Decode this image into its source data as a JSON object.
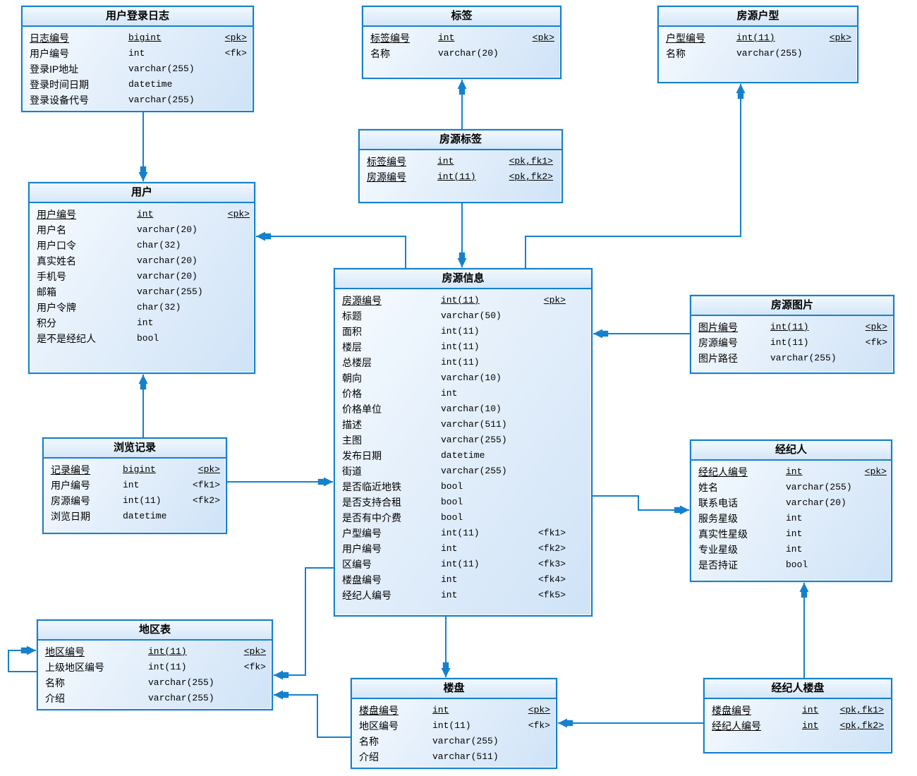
{
  "diagram": {
    "colors": {
      "line": "#1581cd",
      "border": "#1581cd",
      "table_fill_light": "#f8fcff",
      "table_fill_dark": "#cfe3f7"
    },
    "tables": [
      {
        "id": "user_login_log",
        "title": "用户登录日志",
        "fields": [
          {
            "name": "日志编号",
            "type": "bigint",
            "key": "<pk>",
            "pk": true
          },
          {
            "name": "用户编号",
            "type": "int",
            "key": "<fk>"
          },
          {
            "name": "登录IP地址",
            "type": "varchar(255)"
          },
          {
            "name": "登录时间日期",
            "type": "datetime"
          },
          {
            "name": "登录设备代号",
            "type": "varchar(255)"
          }
        ]
      },
      {
        "id": "tag",
        "title": "标签",
        "fields": [
          {
            "name": "标签编号",
            "type": "int",
            "key": "<pk>",
            "pk": true
          },
          {
            "name": "名称",
            "type": "varchar(20)"
          }
        ]
      },
      {
        "id": "house_type",
        "title": "房源户型",
        "fields": [
          {
            "name": "户型编号",
            "type": "int(11)",
            "key": "<pk>",
            "pk": true
          },
          {
            "name": "名称",
            "type": "varchar(255)"
          }
        ]
      },
      {
        "id": "house_tag",
        "title": "房源标签",
        "fields": [
          {
            "name": "标签编号",
            "type": "int",
            "key": "<pk,fk1>",
            "pk": true
          },
          {
            "name": "房源编号",
            "type": "int(11)",
            "key": "<pk,fk2>",
            "pk": true
          }
        ]
      },
      {
        "id": "user",
        "title": "用户",
        "fields": [
          {
            "name": "用户编号",
            "type": "int",
            "key": "<pk>",
            "pk": true
          },
          {
            "name": "用户名",
            "type": "varchar(20)"
          },
          {
            "name": "用户口令",
            "type": "char(32)"
          },
          {
            "name": "真实姓名",
            "type": "varchar(20)"
          },
          {
            "name": "手机号",
            "type": "varchar(20)"
          },
          {
            "name": "邮箱",
            "type": "varchar(255)"
          },
          {
            "name": "用户令牌",
            "type": "char(32)"
          },
          {
            "name": "积分",
            "type": "int"
          },
          {
            "name": "是不是经纪人",
            "type": "bool"
          }
        ]
      },
      {
        "id": "house_info",
        "title": "房源信息",
        "fields": [
          {
            "name": "房源编号",
            "type": "int(11)",
            "key": "<pk>",
            "pk": true
          },
          {
            "name": "标题",
            "type": "varchar(50)"
          },
          {
            "name": "面积",
            "type": "int(11)"
          },
          {
            "name": "楼层",
            "type": "int(11)"
          },
          {
            "name": "总楼层",
            "type": "int(11)"
          },
          {
            "name": "朝向",
            "type": "varchar(10)"
          },
          {
            "name": "价格",
            "type": "int"
          },
          {
            "name": "价格单位",
            "type": "varchar(10)"
          },
          {
            "name": "描述",
            "type": "varchar(511)"
          },
          {
            "name": "主图",
            "type": "varchar(255)"
          },
          {
            "name": "发布日期",
            "type": "datetime"
          },
          {
            "name": "街道",
            "type": "varchar(255)"
          },
          {
            "name": "是否临近地铁",
            "type": "bool"
          },
          {
            "name": "是否支持合租",
            "type": "bool"
          },
          {
            "name": "是否有中介费",
            "type": "bool"
          },
          {
            "name": "户型编号",
            "type": "int(11)",
            "key": "<fk1>"
          },
          {
            "name": "用户编号",
            "type": "int",
            "key": "<fk2>"
          },
          {
            "name": "区编号",
            "type": "int(11)",
            "key": "<fk3>"
          },
          {
            "name": "楼盘编号",
            "type": "int",
            "key": "<fk4>"
          },
          {
            "name": "经纪人编号",
            "type": "int",
            "key": "<fk5>"
          }
        ]
      },
      {
        "id": "house_image",
        "title": "房源图片",
        "fields": [
          {
            "name": "图片编号",
            "type": "int(11)",
            "key": "<pk>",
            "pk": true
          },
          {
            "name": "房源编号",
            "type": "int(11)",
            "key": "<fk>"
          },
          {
            "name": "图片路径",
            "type": "varchar(255)"
          }
        ]
      },
      {
        "id": "agent",
        "title": "经纪人",
        "fields": [
          {
            "name": "经纪人编号",
            "type": "int",
            "key": "<pk>",
            "pk": true
          },
          {
            "name": "姓名",
            "type": "varchar(255)"
          },
          {
            "name": "联系电话",
            "type": "varchar(20)"
          },
          {
            "name": "服务星级",
            "type": "int"
          },
          {
            "name": "真实性星级",
            "type": "int"
          },
          {
            "name": "专业星级",
            "type": "int"
          },
          {
            "name": "是否持证",
            "type": "bool"
          }
        ]
      },
      {
        "id": "browse_record",
        "title": "浏览记录",
        "fields": [
          {
            "name": "记录编号",
            "type": "bigint",
            "key": "<pk>",
            "pk": true
          },
          {
            "name": "用户编号",
            "type": "int",
            "key": "<fk1>"
          },
          {
            "name": "房源编号",
            "type": "int(11)",
            "key": "<fk2>"
          },
          {
            "name": "浏览日期",
            "type": "datetime"
          }
        ]
      },
      {
        "id": "region",
        "title": "地区表",
        "fields": [
          {
            "name": "地区编号",
            "type": "int(11)",
            "key": "<pk>",
            "pk": true
          },
          {
            "name": "上级地区编号",
            "type": "int(11)",
            "key": "<fk>"
          },
          {
            "name": "名称",
            "type": "varchar(255)"
          },
          {
            "name": "介绍",
            "type": "varchar(255)"
          }
        ]
      },
      {
        "id": "building",
        "title": "楼盘",
        "fields": [
          {
            "name": "楼盘编号",
            "type": "int",
            "key": "<pk>",
            "pk": true
          },
          {
            "name": "地区编号",
            "type": "int(11)",
            "key": "<fk>"
          },
          {
            "name": "名称",
            "type": "varchar(255)"
          },
          {
            "name": "介绍",
            "type": "varchar(511)"
          }
        ]
      },
      {
        "id": "agent_building",
        "title": "经纪人楼盘",
        "fields": [
          {
            "name": "楼盘编号",
            "type": "int",
            "key": "<pk,fk1>",
            "pk": true
          },
          {
            "name": "经纪人编号",
            "type": "int",
            "key": "<pk,fk2>",
            "pk": true
          }
        ]
      }
    ],
    "relations": [
      {
        "from": "user_login_log",
        "to": "user"
      },
      {
        "from": "house_tag",
        "to": "tag"
      },
      {
        "from": "house_tag",
        "to": "house_info"
      },
      {
        "from": "house_info",
        "to": "user"
      },
      {
        "from": "house_info",
        "to": "house_type"
      },
      {
        "from": "house_image",
        "to": "house_info"
      },
      {
        "from": "browse_record",
        "to": "user"
      },
      {
        "from": "browse_record",
        "to": "house_info"
      },
      {
        "from": "house_info",
        "to": "agent"
      },
      {
        "from": "house_info",
        "to": "region"
      },
      {
        "from": "house_info",
        "to": "building"
      },
      {
        "from": "building",
        "to": "region"
      },
      {
        "from": "agent_building",
        "to": "building"
      },
      {
        "from": "agent_building",
        "to": "agent"
      },
      {
        "from": "region",
        "to": "region"
      }
    ]
  }
}
